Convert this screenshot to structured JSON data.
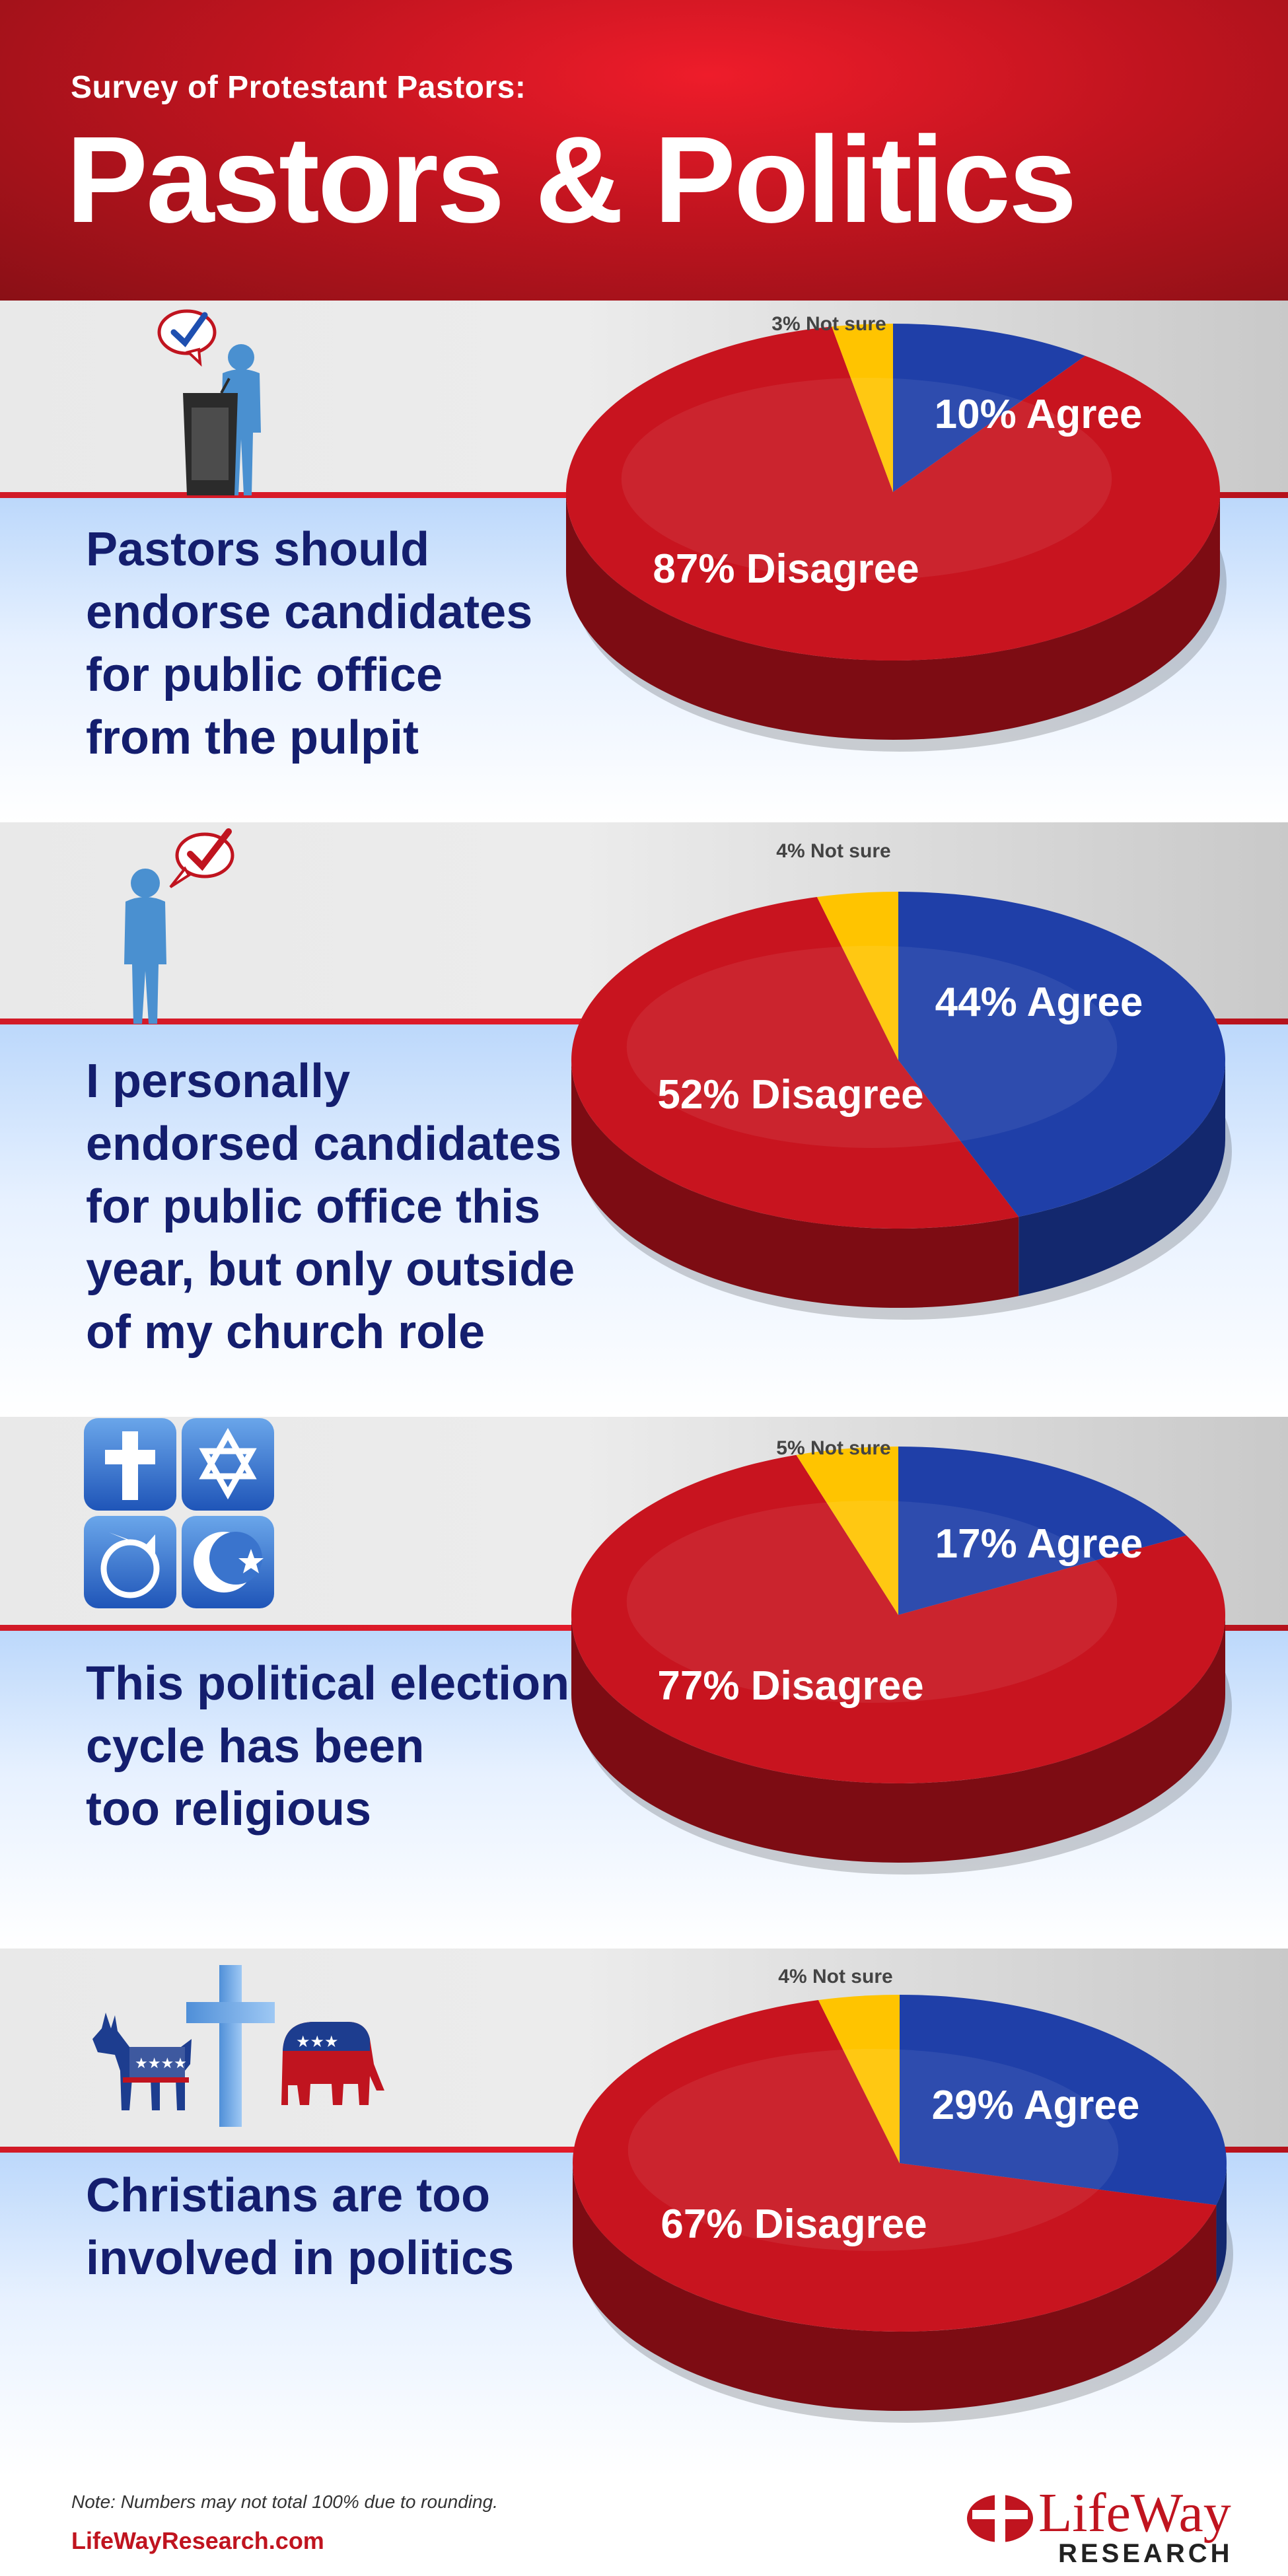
{
  "header": {
    "subtitle": "Survey of Protestant Pastors:",
    "title": "Pastors & Politics"
  },
  "colors": {
    "agree": "#1f3fa8",
    "disagree": "#c8141f",
    "not_sure": "#ffc400"
  },
  "panels": [
    {
      "statement": "Pastors should\nendorse candidates\nfor public office\nfrom the pulpit",
      "icon": "pastor-at-pulpit-with-checkmark-icon",
      "labels": {
        "agree": "10% Agree",
        "disagree": "87% Disagree",
        "not_sure": "3% Not sure"
      }
    },
    {
      "statement": "I personally\nendorsed candidates\nfor public office this\nyear, but only outside\nof my church role",
      "icon": "person-with-checkmark-icon",
      "labels": {
        "agree": "44% Agree",
        "disagree": "52% Disagree",
        "not_sure": "4% Not sure"
      }
    },
    {
      "statement": "This political election\ncycle has been\ntoo religious",
      "icon": "religious-symbols-icon",
      "labels": {
        "agree": "17% Agree",
        "disagree": "77% Disagree",
        "not_sure": "5% Not sure"
      }
    },
    {
      "statement": "Christians are too\ninvolved in politics",
      "icon": "donkey-cross-elephant-icon",
      "labels": {
        "agree": "29% Agree",
        "disagree": "67% Disagree",
        "not_sure": "4% Not sure"
      }
    }
  ],
  "chart_data": [
    {
      "type": "pie",
      "categories": [
        "Agree",
        "Disagree",
        "Not sure"
      ],
      "values": [
        10,
        87,
        3
      ]
    },
    {
      "type": "pie",
      "categories": [
        "Agree",
        "Disagree",
        "Not sure"
      ],
      "values": [
        44,
        52,
        4
      ]
    },
    {
      "type": "pie",
      "categories": [
        "Agree",
        "Disagree",
        "Not sure"
      ],
      "values": [
        17,
        77,
        5
      ]
    },
    {
      "type": "pie",
      "categories": [
        "Agree",
        "Disagree",
        "Not sure"
      ],
      "values": [
        29,
        67,
        4
      ]
    }
  ],
  "footer": {
    "note": "Note: Numbers may not total 100% due to rounding.",
    "url": "LifeWayResearch.com",
    "logo_name": "LifeWay",
    "logo_sub": "RESEARCH"
  }
}
